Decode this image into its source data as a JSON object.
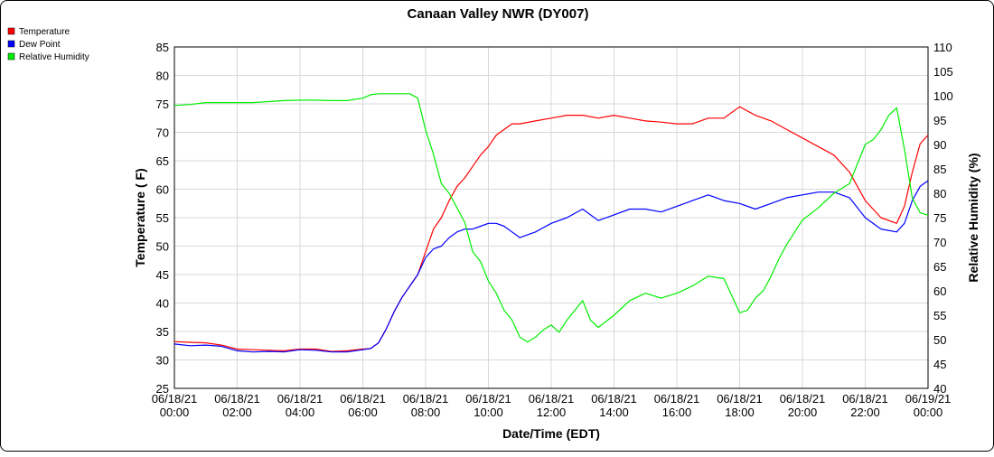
{
  "chart_data": {
    "type": "line",
    "title": "Canaan Valley NWR (DY007)",
    "xlabel": "Date/Time (EDT)",
    "ylabel_left": "Temperature ( F)",
    "ylabel_right": "Relative Humidity (%)",
    "x_ticks": [
      {
        "date": "06/18/21",
        "time": "00:00"
      },
      {
        "date": "06/18/21",
        "time": "02:00"
      },
      {
        "date": "06/18/21",
        "time": "04:00"
      },
      {
        "date": "06/18/21",
        "time": "06:00"
      },
      {
        "date": "06/18/21",
        "time": "08:00"
      },
      {
        "date": "06/18/21",
        "time": "10:00"
      },
      {
        "date": "06/18/21",
        "time": "12:00"
      },
      {
        "date": "06/18/21",
        "time": "14:00"
      },
      {
        "date": "06/18/21",
        "time": "16:00"
      },
      {
        "date": "06/18/21",
        "time": "18:00"
      },
      {
        "date": "06/18/21",
        "time": "20:00"
      },
      {
        "date": "06/18/21",
        "time": "22:00"
      },
      {
        "date": "06/19/21",
        "time": "00:00"
      }
    ],
    "x_range_hours": [
      0,
      24
    ],
    "y_left": {
      "range": [
        25,
        85
      ],
      "ticks": [
        25,
        30,
        35,
        40,
        45,
        50,
        55,
        60,
        65,
        70,
        75,
        80,
        85
      ]
    },
    "y_right": {
      "range": [
        40,
        110
      ],
      "ticks": [
        40,
        45,
        50,
        55,
        60,
        65,
        70,
        75,
        80,
        85,
        90,
        95,
        100,
        105,
        110
      ]
    },
    "grid": true,
    "legend_position": "top-left",
    "series": [
      {
        "name": "Temperature",
        "color": "#ff0000",
        "axis": "left",
        "points": [
          [
            0,
            33.2
          ],
          [
            0.5,
            33.1
          ],
          [
            1,
            33
          ],
          [
            1.5,
            32.6
          ],
          [
            2,
            31.9
          ],
          [
            2.5,
            31.8
          ],
          [
            3,
            31.7
          ],
          [
            3.5,
            31.6
          ],
          [
            4,
            31.9
          ],
          [
            4.5,
            31.9
          ],
          [
            5,
            31.5
          ],
          [
            5.5,
            31.6
          ],
          [
            6,
            31.9
          ],
          [
            6.25,
            32.0
          ],
          [
            6.5,
            33.0
          ],
          [
            6.75,
            35.5
          ],
          [
            7,
            38.5
          ],
          [
            7.25,
            41
          ],
          [
            7.5,
            43
          ],
          [
            7.75,
            45
          ],
          [
            8,
            49
          ],
          [
            8.25,
            53
          ],
          [
            8.5,
            55
          ],
          [
            8.75,
            58
          ],
          [
            9,
            60.5
          ],
          [
            9.25,
            62
          ],
          [
            9.5,
            64
          ],
          [
            9.75,
            66
          ],
          [
            10,
            67.5
          ],
          [
            10.25,
            69.5
          ],
          [
            10.5,
            70.5
          ],
          [
            10.75,
            71.5
          ],
          [
            11,
            71.5
          ],
          [
            11.5,
            72
          ],
          [
            12,
            72.5
          ],
          [
            12.5,
            73
          ],
          [
            13,
            73
          ],
          [
            13.5,
            72.5
          ],
          [
            14,
            73
          ],
          [
            14.5,
            72.5
          ],
          [
            15,
            72
          ],
          [
            15.5,
            71.8
          ],
          [
            16,
            71.5
          ],
          [
            16.5,
            71.5
          ],
          [
            17,
            72.5
          ],
          [
            17.5,
            72.5
          ],
          [
            18,
            74.5
          ],
          [
            18.5,
            73
          ],
          [
            19,
            72
          ],
          [
            19.5,
            70.5
          ],
          [
            20,
            69
          ],
          [
            20.5,
            67.5
          ],
          [
            21,
            66
          ],
          [
            21.5,
            63
          ],
          [
            22,
            58
          ],
          [
            22.5,
            55
          ],
          [
            23,
            54
          ],
          [
            23.25,
            57
          ],
          [
            23.5,
            63
          ],
          [
            23.75,
            68
          ],
          [
            24,
            69.5
          ]
        ]
      },
      {
        "name": "Dew Point",
        "color": "#0000ff",
        "axis": "left",
        "points": [
          [
            0,
            32.8
          ],
          [
            0.5,
            32.5
          ],
          [
            1,
            32.6
          ],
          [
            1.5,
            32.4
          ],
          [
            2,
            31.6
          ],
          [
            2.5,
            31.4
          ],
          [
            3,
            31.5
          ],
          [
            3.5,
            31.4
          ],
          [
            4,
            31.8
          ],
          [
            4.5,
            31.7
          ],
          [
            5,
            31.4
          ],
          [
            5.5,
            31.4
          ],
          [
            6,
            31.8
          ],
          [
            6.25,
            32.0
          ],
          [
            6.5,
            33.0
          ],
          [
            6.75,
            35.5
          ],
          [
            7,
            38.5
          ],
          [
            7.25,
            41
          ],
          [
            7.5,
            43
          ],
          [
            7.75,
            45
          ],
          [
            8,
            48
          ],
          [
            8.25,
            49.5
          ],
          [
            8.5,
            50
          ],
          [
            8.75,
            51.5
          ],
          [
            9,
            52.5
          ],
          [
            9.25,
            53
          ],
          [
            9.5,
            53
          ],
          [
            9.75,
            53.5
          ],
          [
            10,
            54
          ],
          [
            10.25,
            54
          ],
          [
            10.5,
            53.5
          ],
          [
            10.75,
            52.5
          ],
          [
            11,
            51.5
          ],
          [
            11.5,
            52.5
          ],
          [
            12,
            54
          ],
          [
            12.5,
            55
          ],
          [
            13,
            56.5
          ],
          [
            13.5,
            54.5
          ],
          [
            14,
            55.5
          ],
          [
            14.5,
            56.5
          ],
          [
            15,
            56.5
          ],
          [
            15.5,
            56
          ],
          [
            16,
            57
          ],
          [
            16.5,
            58
          ],
          [
            17,
            59
          ],
          [
            17.5,
            58
          ],
          [
            18,
            57.5
          ],
          [
            18.5,
            56.5
          ],
          [
            19,
            57.5
          ],
          [
            19.5,
            58.5
          ],
          [
            20,
            59
          ],
          [
            20.5,
            59.5
          ],
          [
            21,
            59.5
          ],
          [
            21.5,
            58.5
          ],
          [
            22,
            55
          ],
          [
            22.5,
            53
          ],
          [
            23,
            52.5
          ],
          [
            23.25,
            54
          ],
          [
            23.5,
            58
          ],
          [
            23.75,
            60.5
          ],
          [
            24,
            61.5
          ]
        ]
      },
      {
        "name": "Relative Humidity",
        "color": "#00ee00",
        "axis": "right",
        "points": [
          [
            0,
            98
          ],
          [
            0.5,
            98.2
          ],
          [
            1,
            98.6
          ],
          [
            1.5,
            98.6
          ],
          [
            2,
            98.6
          ],
          [
            2.5,
            98.6
          ],
          [
            3,
            98.8
          ],
          [
            3.5,
            99
          ],
          [
            4,
            99.1
          ],
          [
            4.5,
            99.1
          ],
          [
            5,
            99
          ],
          [
            5.5,
            99
          ],
          [
            6,
            99.5
          ],
          [
            6.25,
            100.2
          ],
          [
            6.5,
            100.4
          ],
          [
            7,
            100.4
          ],
          [
            7.5,
            100.4
          ],
          [
            7.75,
            99.5
          ],
          [
            8,
            93
          ],
          [
            8.25,
            88
          ],
          [
            8.5,
            82
          ],
          [
            8.75,
            80
          ],
          [
            9,
            77
          ],
          [
            9.25,
            74
          ],
          [
            9.5,
            68
          ],
          [
            9.75,
            66
          ],
          [
            10,
            62
          ],
          [
            10.25,
            59.5
          ],
          [
            10.5,
            56
          ],
          [
            10.75,
            54
          ],
          [
            11,
            50.5
          ],
          [
            11.25,
            49.5
          ],
          [
            11.5,
            50.5
          ],
          [
            11.75,
            52
          ],
          [
            12,
            53
          ],
          [
            12.25,
            51.5
          ],
          [
            12.5,
            54
          ],
          [
            12.75,
            56
          ],
          [
            13,
            58
          ],
          [
            13.25,
            54
          ],
          [
            13.5,
            52.5
          ],
          [
            14,
            55
          ],
          [
            14.5,
            58
          ],
          [
            15,
            59.5
          ],
          [
            15.5,
            58.5
          ],
          [
            16,
            59.5
          ],
          [
            16.5,
            61
          ],
          [
            17,
            63
          ],
          [
            17.5,
            62.5
          ],
          [
            18,
            55.5
          ],
          [
            18.25,
            56
          ],
          [
            18.5,
            58.5
          ],
          [
            18.75,
            60
          ],
          [
            19,
            63
          ],
          [
            19.25,
            66.5
          ],
          [
            19.5,
            69.5
          ],
          [
            19.75,
            72
          ],
          [
            20,
            74.5
          ],
          [
            20.5,
            77
          ],
          [
            21,
            80
          ],
          [
            21.5,
            82
          ],
          [
            21.75,
            86
          ],
          [
            22,
            90
          ],
          [
            22.25,
            91
          ],
          [
            22.5,
            93
          ],
          [
            22.75,
            96
          ],
          [
            23,
            97.5
          ],
          [
            23.25,
            89
          ],
          [
            23.5,
            79
          ],
          [
            23.75,
            76
          ],
          [
            24,
            75.5
          ]
        ]
      }
    ]
  }
}
